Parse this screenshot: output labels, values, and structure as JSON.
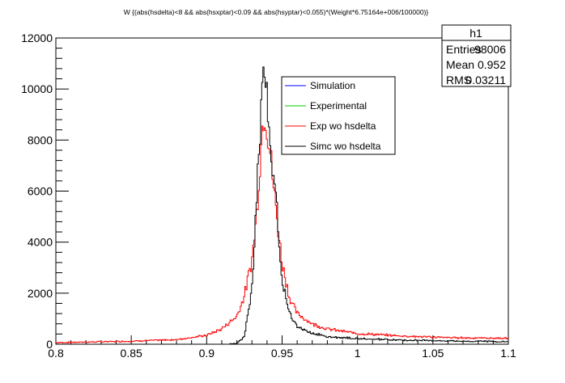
{
  "title": "W {(abs(hsdelta)<8 && abs(hsxptar)<0.09 && abs(hsyptar)<0.055)*(Weight*6.75164e+006/100000)}",
  "stats": {
    "name": "h1",
    "rows": [
      {
        "label": "Entries",
        "value": "98006"
      },
      {
        "label": "Mean",
        "value": "0.952"
      },
      {
        "label": "RMS",
        "value": "0.03211"
      }
    ]
  },
  "legend": [
    {
      "label": "Simulation",
      "color": "#0000ff"
    },
    {
      "label": "Experimental",
      "color": "#00cc00"
    },
    {
      "label": "Exp wo hsdelta",
      "color": "#ff0000"
    },
    {
      "label": "Simc wo hsdelta",
      "color": "#000000"
    }
  ],
  "chart_data": {
    "type": "line",
    "title": "W {(abs(hsdelta)<8 && abs(hsxptar)<0.09 && abs(hsyptar)<0.055)*(Weight*6.75164e+006/100000)}",
    "xlabel": "",
    "ylabel": "",
    "xlim": [
      0.8,
      1.1
    ],
    "ylim": [
      0,
      12000
    ],
    "xticks": [
      "0.8",
      "0.85",
      "0.9",
      "0.95",
      "1",
      "1.05",
      "1.1"
    ],
    "yticks": [
      "0",
      "2000",
      "4000",
      "6000",
      "8000",
      "10000",
      "12000"
    ],
    "grid": false,
    "legend_position": "top-center",
    "series": [
      {
        "name": "Exp wo hsdelta",
        "color": "#ff0000",
        "x": [
          0.8,
          0.85,
          0.88,
          0.9,
          0.91,
          0.92,
          0.925,
          0.93,
          0.933,
          0.935,
          0.937,
          0.938,
          0.939,
          0.94,
          0.942,
          0.945,
          0.948,
          0.95,
          0.955,
          0.96,
          0.97,
          0.98,
          1.0,
          1.03,
          1.06,
          1.1
        ],
        "values": [
          60,
          120,
          180,
          350,
          600,
          1100,
          1900,
          3300,
          5000,
          6800,
          8600,
          9300,
          9000,
          8600,
          7600,
          5800,
          4200,
          3200,
          1800,
          1200,
          800,
          600,
          420,
          320,
          260,
          230
        ]
      },
      {
        "name": "Simc wo hsdelta",
        "color": "#000000",
        "x": [
          0.8,
          0.85,
          0.9,
          0.915,
          0.92,
          0.925,
          0.93,
          0.933,
          0.935,
          0.937,
          0.938,
          0.939,
          0.94,
          0.942,
          0.945,
          0.948,
          0.95,
          0.955,
          0.96,
          0.97,
          0.98,
          1.0,
          1.03,
          1.06,
          1.1
        ],
        "values": [
          0,
          0,
          0,
          0,
          30,
          300,
          2200,
          5500,
          8000,
          9800,
          10500,
          10400,
          9800,
          8400,
          6200,
          4200,
          2600,
          1200,
          700,
          420,
          300,
          220,
          160,
          130,
          100
        ]
      }
    ]
  }
}
